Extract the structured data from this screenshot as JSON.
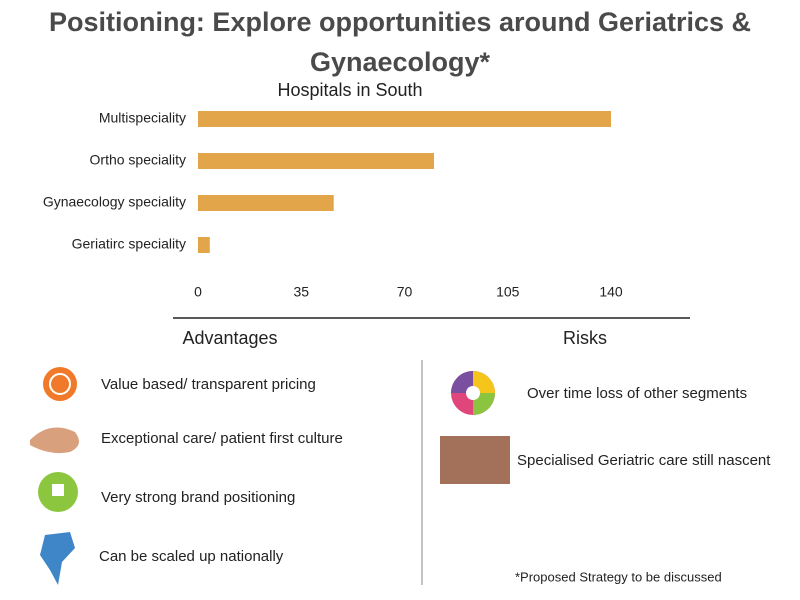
{
  "title": "Positioning: Explore opportunities around Geriatrics & Gynaecology*",
  "chart_data": {
    "type": "hbar",
    "title": "Hospitals in South",
    "categories": [
      "Multispeciality",
      "Ortho speciality",
      "Gynaecology speciality",
      "Geriatirc speciality"
    ],
    "values": [
      140,
      80,
      46,
      4
    ],
    "color": "#e3a54a",
    "xlim": [
      0,
      140
    ],
    "xticks": [
      0,
      35,
      70,
      105,
      140
    ],
    "grid": false
  },
  "advantages": {
    "heading": "Advantages",
    "items": [
      "Value based/ transparent pricing",
      "Exceptional care/ patient first culture",
      "Very strong brand positioning",
      "Can be scaled up nationally"
    ]
  },
  "risks": {
    "heading": "Risks",
    "items": [
      "Over time loss of other segments",
      "Specialised Geriatric care still nascent"
    ]
  },
  "footnote": "*Proposed Strategy to be discussed"
}
